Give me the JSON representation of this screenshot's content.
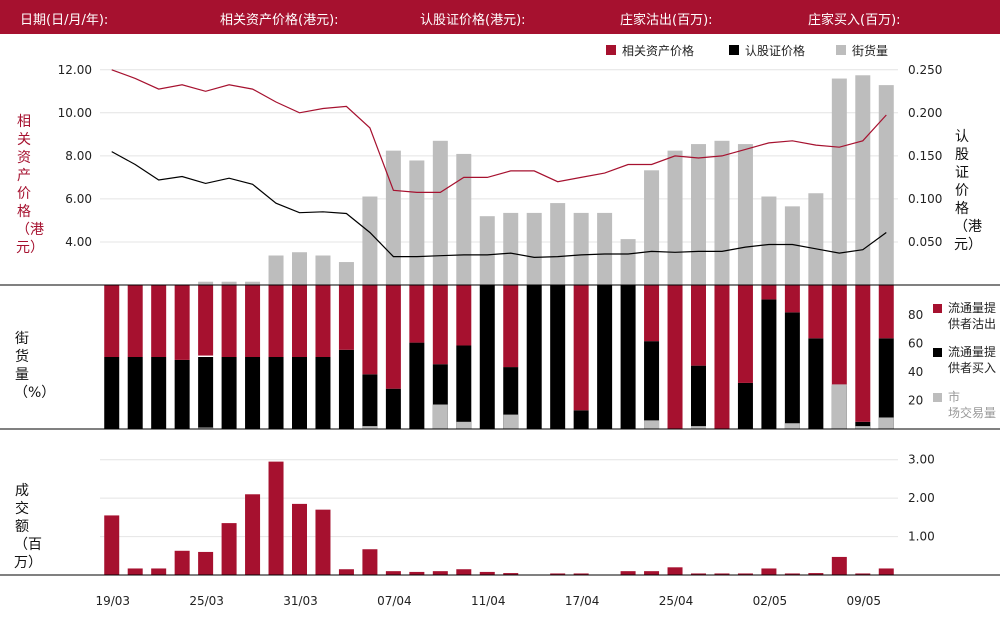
{
  "header": {
    "date_label": "日期(日/月/年):",
    "underlying_label": "相关资产价格(港元):",
    "warrant_label": "认股证价格(港元):",
    "mm_out_label": "庄家沽出(百万):",
    "mm_in_label": "庄家买入(百万):"
  },
  "colors": {
    "crimson": "#a6112f",
    "black": "#000000",
    "grey": "#bdbdbd",
    "header_bg": "#a6112f"
  },
  "chart_data": [
    {
      "type": "line",
      "name": "price",
      "legend": [
        {
          "label": "相关资产价格",
          "color": "#a6112f"
        },
        {
          "label": "认股证价格",
          "color": "#000000"
        },
        {
          "label": "街货量",
          "color": "#bdbdbd"
        }
      ],
      "ylabel_left": "相关资产价格（港元）",
      "ylabel_right": "认股证价格（港元）",
      "yticks_left": [
        "12.00",
        "10.00",
        "8.00",
        "6.00",
        "4.00"
      ],
      "yticks_right": [
        "0.250",
        "0.200",
        "0.150",
        "0.100",
        "0.050"
      ],
      "ylim_left": [
        2.0,
        12.5
      ],
      "ylim_right": [
        0.0,
        0.2625
      ],
      "underlying": [
        12.0,
        11.6,
        11.1,
        11.3,
        11.0,
        11.3,
        11.1,
        10.5,
        10.0,
        10.2,
        10.3,
        9.3,
        6.4,
        6.3,
        6.3,
        7.0,
        7.0,
        7.3,
        7.3,
        6.8,
        7.0,
        7.2,
        7.6,
        7.6,
        8.0,
        7.9,
        8.0,
        8.3,
        8.6,
        8.7,
        8.5,
        8.4,
        8.7,
        9.9
      ],
      "warrant": [
        0.155,
        0.14,
        0.122,
        0.126,
        0.118,
        0.124,
        0.117,
        0.095,
        0.084,
        0.085,
        0.083,
        0.061,
        0.033,
        0.033,
        0.034,
        0.035,
        0.035,
        0.037,
        0.032,
        0.033,
        0.035,
        0.036,
        0.036,
        0.039,
        0.038,
        0.039,
        0.039,
        0.044,
        0.047,
        0.047,
        0.042,
        0.037,
        0.041,
        0.061
      ],
      "outstanding_pct": [
        0,
        0,
        0,
        0,
        1,
        1,
        1,
        9,
        10,
        9,
        7,
        27,
        41,
        38,
        44,
        40,
        21,
        22,
        22,
        25,
        22,
        22,
        14,
        35,
        41,
        43,
        44,
        43,
        27,
        24,
        28,
        63,
        64,
        61
      ]
    },
    {
      "type": "bar",
      "name": "holders",
      "yticks": [
        "80",
        "60",
        "40",
        "20"
      ],
      "ylim": [
        0,
        100
      ],
      "ylabel": "街货量（%）",
      "legend": [
        {
          "label": "流通量提供者沽出",
          "color": "#a6112f"
        },
        {
          "label": "流通量提供者买入",
          "color": "#000000"
        },
        {
          "label": "市场交易量",
          "color": "#bdbdbd"
        }
      ],
      "sell": [
        50,
        50,
        50,
        52,
        49,
        50,
        50,
        50,
        50,
        50,
        45,
        62,
        72,
        40,
        55,
        42,
        0,
        57,
        0,
        0,
        87,
        0,
        0,
        39,
        100,
        56,
        100,
        68,
        10,
        19,
        37,
        70,
        95,
        37
      ],
      "buy": [
        50,
        50,
        50,
        48,
        50,
        50,
        50,
        50,
        50,
        50,
        55,
        38,
        28,
        60,
        45,
        58,
        100,
        43,
        100,
        100,
        13,
        100,
        100,
        61,
        0,
        44,
        0,
        32,
        90,
        81,
        63,
        30,
        5,
        63
      ],
      "market": [
        0,
        0,
        0,
        0,
        1,
        0,
        0,
        0,
        0,
        0,
        0,
        2,
        0,
        0,
        17,
        5,
        0,
        10,
        0,
        0,
        0,
        0,
        0,
        6,
        0,
        2,
        0,
        0,
        0,
        4,
        0,
        31,
        2,
        8
      ]
    },
    {
      "type": "bar",
      "name": "turnover",
      "yticks": [
        "3.00",
        "2.00",
        "1.00"
      ],
      "ylim": [
        0,
        3.2
      ],
      "ylabel": "成交额（百万）",
      "values": [
        1.55,
        0.17,
        0.17,
        0.63,
        0.6,
        1.35,
        2.1,
        2.95,
        1.85,
        1.7,
        0.15,
        0.67,
        0.1,
        0.08,
        0.1,
        0.15,
        0.08,
        0.05,
        0.0,
        0.04,
        0.04,
        0.0,
        0.1,
        0.1,
        0.2,
        0.04,
        0.04,
        0.04,
        0.17,
        0.04,
        0.05,
        0.47,
        0.04,
        0.17
      ],
      "xticks": [
        {
          "index": 0,
          "label": "19/03"
        },
        {
          "index": 4,
          "label": "25/03"
        },
        {
          "index": 8,
          "label": "31/03"
        },
        {
          "index": 12,
          "label": "07/04"
        },
        {
          "index": 16,
          "label": "11/04"
        },
        {
          "index": 20,
          "label": "17/04"
        },
        {
          "index": 24,
          "label": "25/04"
        },
        {
          "index": 28,
          "label": "02/05"
        },
        {
          "index": 32,
          "label": "09/05"
        }
      ]
    }
  ]
}
